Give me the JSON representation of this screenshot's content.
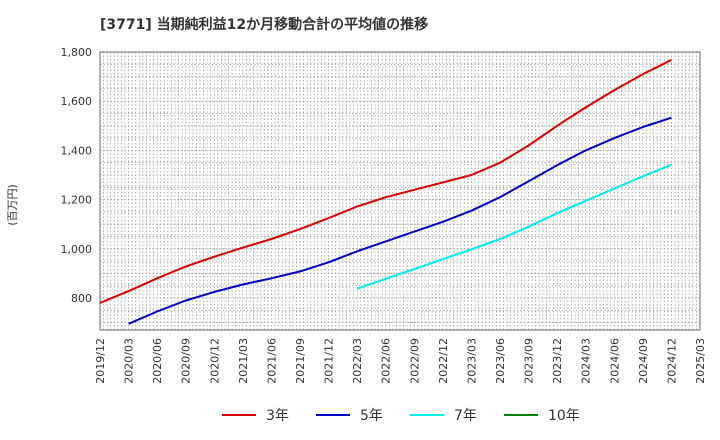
{
  "title": "[3771]  当期純利益12か月移動合計の平均値の推移",
  "chart_data": {
    "type": "line",
    "title": "[3771]  当期純利益12か月移動合計の平均値の推移",
    "ylabel": "(百万円)",
    "xlabel": "",
    "ylim": [
      670,
      1800
    ],
    "yticks": [
      800,
      1000,
      1200,
      1400,
      1600,
      1800
    ],
    "ytick_labels": [
      "800",
      "1,000",
      "1,200",
      "1,400",
      "1,600",
      "1,800"
    ],
    "xtick_labels": [
      "2019/12",
      "2020/03",
      "2020/06",
      "2020/09",
      "2020/12",
      "2021/03",
      "2021/06",
      "2021/09",
      "2021/12",
      "2022/03",
      "2022/06",
      "2022/09",
      "2022/12",
      "2023/03",
      "2023/06",
      "2023/09",
      "2023/12",
      "2024/03",
      "2024/06",
      "2024/09",
      "2024/12",
      "2025/03"
    ],
    "grid": true,
    "legend_position": "bottom",
    "series": [
      {
        "name": "3年",
        "color": "#dd0000",
        "start_index": 0,
        "values": [
          780,
          828,
          880,
          928,
          968,
          1005,
          1040,
          1080,
          1125,
          1172,
          1210,
          1240,
          1270,
          1300,
          1350,
          1420,
          1500,
          1575,
          1645,
          1710,
          1768
        ]
      },
      {
        "name": "5年",
        "color": "#0000cc",
        "start_index": 1,
        "values": [
          695,
          745,
          790,
          825,
          855,
          880,
          908,
          945,
          990,
          1030,
          1070,
          1110,
          1155,
          1210,
          1275,
          1340,
          1400,
          1450,
          1495,
          1533
        ]
      },
      {
        "name": "7年",
        "color": "#00eeee",
        "start_index": 9,
        "values": [
          838,
          878,
          918,
          958,
          998,
          1040,
          1090,
          1145,
          1195,
          1245,
          1295,
          1342
        ]
      },
      {
        "name": "10年",
        "color": "#008000",
        "start_index": 0,
        "values": []
      }
    ]
  }
}
